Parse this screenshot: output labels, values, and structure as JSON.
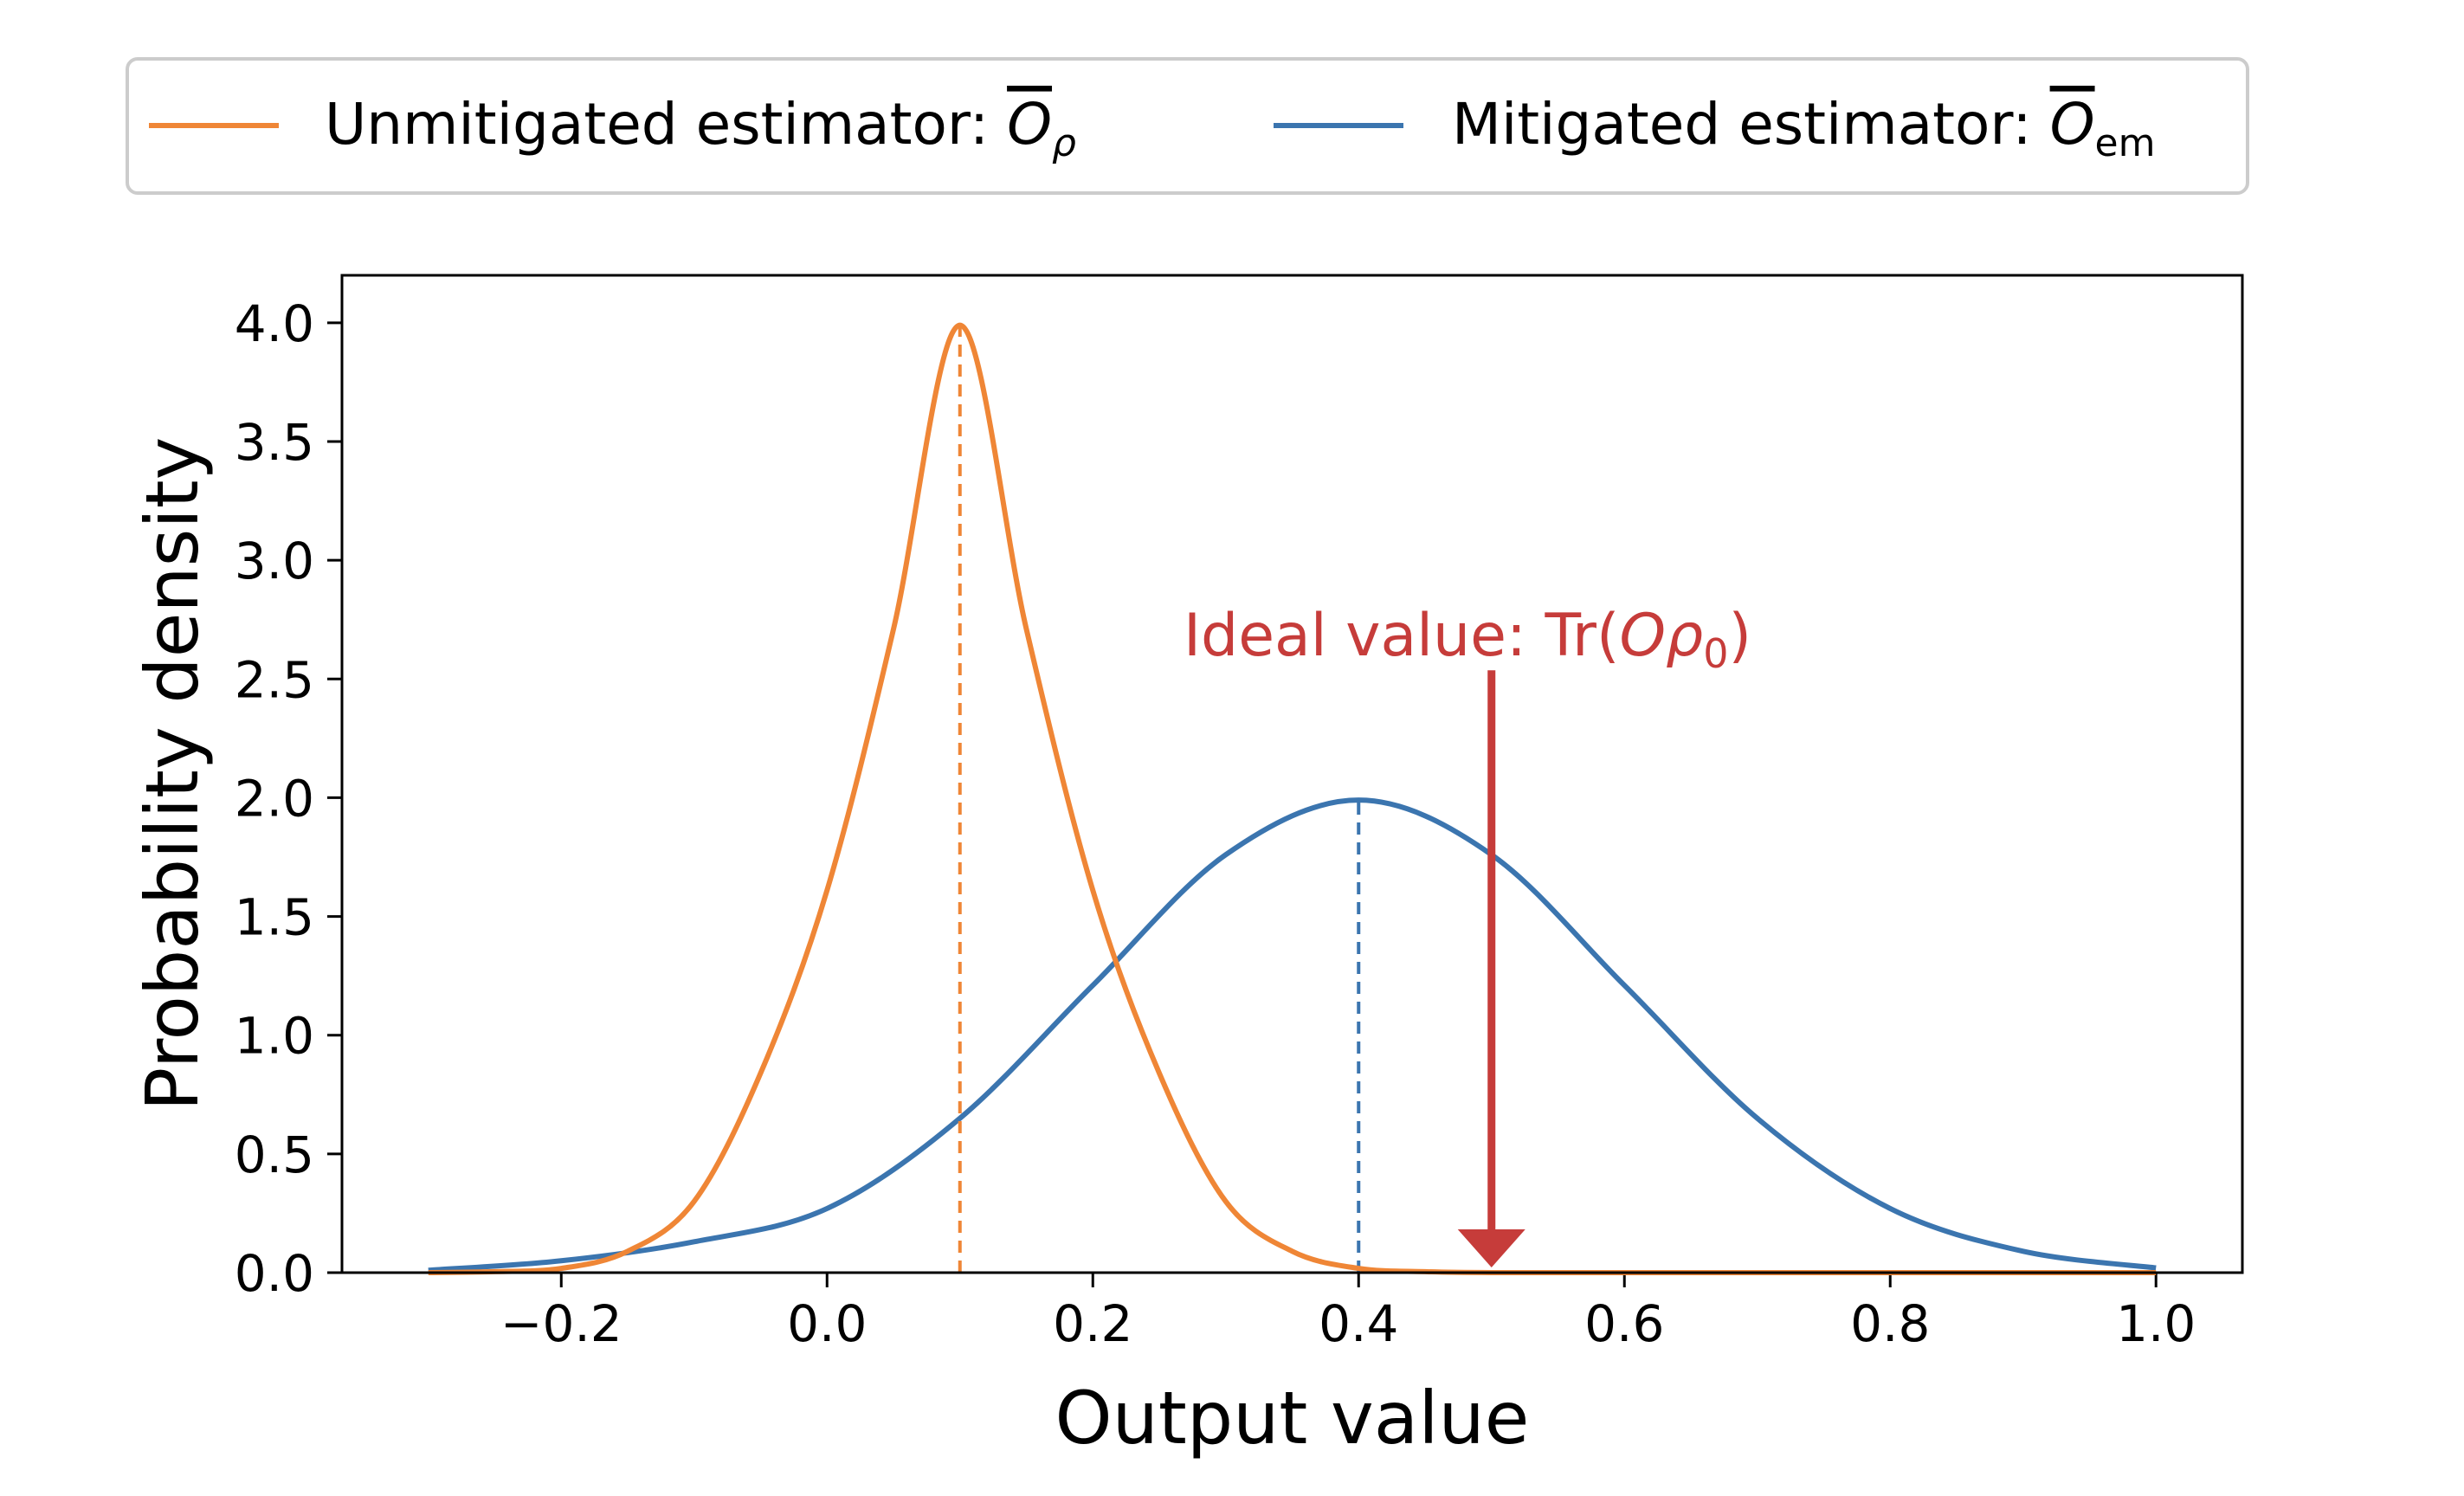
{
  "chart_data": {
    "type": "line",
    "xlabel": "Output value",
    "ylabel": "Probability density",
    "xlim": [
      -0.365,
      1.065
    ],
    "ylim": [
      0,
      4.2
    ],
    "xticks": [
      -0.2,
      0.0,
      0.2,
      0.4,
      0.6,
      0.8,
      1.0
    ],
    "xtick_labels": [
      "−0.2",
      "0.0",
      "0.2",
      "0.4",
      "0.6",
      "0.8",
      "1.0"
    ],
    "yticks": [
      0.0,
      0.5,
      1.0,
      1.5,
      2.0,
      2.5,
      3.0,
      3.5,
      4.0
    ],
    "ytick_labels": [
      "0.0",
      "0.5",
      "1.0",
      "1.5",
      "2.0",
      "2.5",
      "3.0",
      "3.5",
      "4.0"
    ],
    "legend_placement": "top, above plot",
    "series": [
      {
        "name_text": "Unmitigated estimator: ",
        "name_symbol": "O",
        "name_subscript": "ρ",
        "color": "#ef8636",
        "x": [
          -0.3,
          -0.25,
          -0.2,
          -0.15,
          -0.1,
          -0.05,
          0.0,
          0.05,
          0.1,
          0.15,
          0.2,
          0.25,
          0.3,
          0.35,
          0.4,
          0.45,
          0.5,
          0.6,
          0.7,
          0.8,
          0.9,
          1.0
        ],
        "y": [
          0.0,
          0.004,
          0.018,
          0.09,
          0.3,
          0.84,
          1.61,
          2.71,
          3.99,
          2.71,
          1.61,
          0.84,
          0.3,
          0.09,
          0.018,
          0.004,
          0.0,
          0.0,
          0.0,
          0.0,
          0.0,
          0.0
        ],
        "mean": 0.1
      },
      {
        "name_text": "Mitigated estimator: ",
        "name_symbol": "O",
        "name_subscript": "em",
        "color": "#3b75af",
        "x": [
          -0.3,
          -0.2,
          -0.1,
          0.0,
          0.1,
          0.2,
          0.3,
          0.4,
          0.5,
          0.6,
          0.7,
          0.8,
          0.9,
          1.0
        ],
        "y": [
          0.01,
          0.05,
          0.13,
          0.27,
          0.65,
          1.21,
          1.76,
          1.99,
          1.76,
          1.21,
          0.65,
          0.27,
          0.09,
          0.02
        ],
        "mean": 0.4
      }
    ],
    "annotation": {
      "text_prefix": "Ideal value: Tr(",
      "text_symbol": "Oρ",
      "text_subscript": "0",
      "text_suffix": ")",
      "x": 0.5,
      "arrow_from_y": 2.5,
      "arrow_to_y": 0.0,
      "color": "#c63c3a"
    }
  }
}
